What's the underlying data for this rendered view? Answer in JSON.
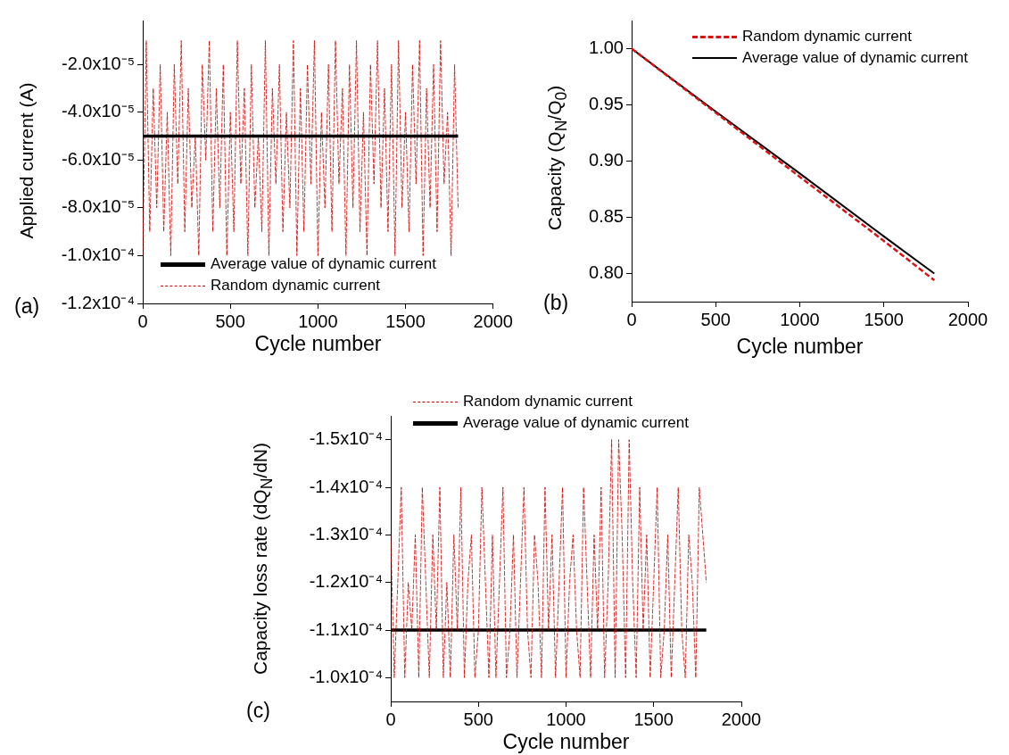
{
  "chart_data": [
    {
      "type": "line",
      "xlabel": "Cycle number",
      "ylabel": "Applied current (A)",
      "annotations": [
        "(a)"
      ],
      "legend": "bottom left",
      "marker": "none",
      "xlim": [
        0,
        2000
      ],
      "xticks": [
        0,
        500,
        1000,
        1500,
        2000
      ],
      "ylim": [
        -0.00012,
        -1.6e-06
      ],
      "yticks": [
        {
          "value": -0.00012,
          "label": "-1.2x10⁻⁴"
        },
        {
          "value": -0.0001,
          "label": "-1.0x10⁻⁴"
        },
        {
          "value": -8e-05,
          "label": "-8.0x10⁻⁵"
        },
        {
          "value": -6e-05,
          "label": "-6.0x10⁻⁵"
        },
        {
          "value": -4e-05,
          "label": "-4.0x10⁻⁵"
        },
        {
          "value": -2e-05,
          "label": "-2.0x10⁻⁵"
        }
      ],
      "series": [
        {
          "name": "Average value of dynamic current",
          "color": "#000000",
          "line_style": "solid",
          "x": [
            0,
            1800
          ],
          "values": [
            -5e-05,
            -5e-05
          ]
        },
        {
          "name": "Random dynamic current",
          "color": "#cc0000",
          "line_style": "dashed",
          "x": [
            0,
            20,
            40,
            60,
            80,
            100,
            120,
            140,
            160,
            180,
            200,
            220,
            240,
            260,
            280,
            300,
            320,
            340,
            360,
            380,
            400,
            420,
            440,
            460,
            480,
            500,
            520,
            540,
            560,
            580,
            600,
            620,
            640,
            660,
            680,
            700,
            720,
            740,
            760,
            780,
            800,
            820,
            840,
            860,
            880,
            900,
            920,
            940,
            960,
            980,
            1000,
            1020,
            1040,
            1060,
            1080,
            1100,
            1120,
            1140,
            1160,
            1180,
            1200,
            1220,
            1240,
            1260,
            1280,
            1300,
            1320,
            1340,
            1360,
            1380,
            1400,
            1420,
            1440,
            1460,
            1480,
            1500,
            1520,
            1540,
            1560,
            1580,
            1600,
            1620,
            1640,
            1660,
            1680,
            1700,
            1720,
            1740,
            1760,
            1780,
            1800
          ],
          "values": [
            -0.0001,
            -1e-05,
            -9e-05,
            -3e-05,
            -8e-05,
            -2e-05,
            -9e-05,
            -4e-05,
            -0.0001,
            -2e-05,
            -7e-05,
            -1e-05,
            -9e-05,
            -3e-05,
            -8e-05,
            -5e-05,
            -0.0001,
            -2e-05,
            -6e-05,
            -1e-05,
            -9e-05,
            -3e-05,
            -8e-05,
            -2e-05,
            -0.0001,
            -4e-05,
            -9e-05,
            -1e-05,
            -7e-05,
            -3e-05,
            -0.0001,
            -2e-05,
            -8e-05,
            -5e-05,
            -9e-05,
            -1e-05,
            -0.0001,
            -3e-05,
            -7e-05,
            -2e-05,
            -9e-05,
            -4e-05,
            -8e-05,
            -1e-05,
            -0.0001,
            -3e-05,
            -9e-05,
            -2e-05,
            -7e-05,
            -1e-05,
            -0.0001,
            -4e-05,
            -8e-05,
            -2e-05,
            -9e-05,
            -1e-05,
            -7e-05,
            -3e-05,
            -0.0001,
            -2e-05,
            -8e-05,
            -1e-05,
            -9e-05,
            -4e-05,
            -0.0001,
            -2e-05,
            -7e-05,
            -1e-05,
            -8e-05,
            -3e-05,
            -9e-05,
            -2e-05,
            -0.0001,
            -1e-05,
            -8e-05,
            -4e-05,
            -9e-05,
            -2e-05,
            -7e-05,
            -1e-05,
            -0.0001,
            -3e-05,
            -8e-05,
            -2e-05,
            -9e-05,
            -1e-05,
            -7e-05,
            -4e-05,
            -0.0001,
            -2e-05,
            -8e-05
          ]
        }
      ]
    },
    {
      "type": "line",
      "xlabel": "Cycle number",
      "ylabel": "Capacity (Q$_{N}$/Q$_{0}$)",
      "annotations": [
        "(b)"
      ],
      "legend": "top right",
      "marker": "none",
      "xlim": [
        0,
        2000
      ],
      "xticks": [
        0,
        500,
        1000,
        1500,
        2000
      ],
      "ylim": [
        0.775,
        1.025
      ],
      "yticks": [
        {
          "value": 0.8,
          "label": "0.80"
        },
        {
          "value": 0.85,
          "label": "0.85"
        },
        {
          "value": 0.9,
          "label": "0.90"
        },
        {
          "value": 0.95,
          "label": "0.95"
        },
        {
          "value": 1,
          "label": "1.00"
        }
      ],
      "series": [
        {
          "name": "Random dynamic current",
          "color": "#dd1111",
          "line_style": "dashed",
          "x": [
            0,
            500,
            1000,
            1500,
            1800
          ],
          "values": [
            1,
            0.943,
            0.886,
            0.829,
            0.794
          ]
        },
        {
          "name": "Average value of dynamic current",
          "color": "#000000",
          "line_style": "solid",
          "x": [
            0,
            500,
            1000,
            1500,
            1800
          ],
          "values": [
            1,
            0.944,
            0.889,
            0.833,
            0.8
          ]
        }
      ]
    },
    {
      "type": "line",
      "xlabel": "Cycle number",
      "ylabel": "Capacity loss rate (dQ$_{N}$/dN)",
      "annotations": [
        "(c)"
      ],
      "legend": "top",
      "marker": "none",
      "xlim": [
        0,
        2000
      ],
      "xticks": [
        0,
        500,
        1000,
        1500,
        2000
      ],
      "ylim": [
        -9.5e-05,
        -0.000155
      ],
      "yticks": [
        {
          "value": -0.0001,
          "label": "-1.0x10⁻⁴"
        },
        {
          "value": -0.00011,
          "label": "-1.1x10⁻⁴"
        },
        {
          "value": -0.00012,
          "label": "-1.2x10⁻⁴"
        },
        {
          "value": -0.00013,
          "label": "-1.3x10⁻⁴"
        },
        {
          "value": -0.00014,
          "label": "-1.4x10⁻⁴"
        },
        {
          "value": -0.00015,
          "label": "-1.5x10⁻⁴"
        }
      ],
      "series": [
        {
          "name": "Random dynamic current",
          "color": "#cc0000",
          "line_style": "dashed",
          "x": [
            0,
            20,
            40,
            60,
            80,
            100,
            120,
            140,
            160,
            180,
            200,
            220,
            240,
            260,
            280,
            300,
            320,
            340,
            360,
            380,
            400,
            420,
            440,
            460,
            480,
            500,
            520,
            540,
            560,
            580,
            600,
            620,
            640,
            660,
            680,
            700,
            720,
            740,
            760,
            780,
            800,
            820,
            840,
            860,
            880,
            900,
            920,
            940,
            960,
            980,
            1000,
            1020,
            1040,
            1060,
            1080,
            1100,
            1120,
            1140,
            1160,
            1180,
            1200,
            1220,
            1240,
            1260,
            1280,
            1300,
            1320,
            1340,
            1360,
            1380,
            1400,
            1420,
            1440,
            1460,
            1480,
            1500,
            1520,
            1540,
            1560,
            1580,
            1600,
            1620,
            1640,
            1660,
            1680,
            1700,
            1720,
            1740,
            1760,
            1780,
            1800
          ],
          "values": [
            -0.00013,
            -0.0001,
            -0.00012,
            -0.00014,
            -0.0001,
            -0.00012,
            -0.00011,
            -0.00013,
            -0.0001,
            -0.00014,
            -0.00012,
            -0.0001,
            -0.00013,
            -0.00011,
            -0.00014,
            -0.0001,
            -0.00012,
            -0.0001,
            -0.00013,
            -0.00011,
            -0.00014,
            -0.0001,
            -0.00012,
            -0.00013,
            -0.0001,
            -0.00011,
            -0.00014,
            -0.00012,
            -0.0001,
            -0.00013,
            -0.0001,
            -0.00012,
            -0.00014,
            -0.0001,
            -0.00011,
            -0.00013,
            -0.0001,
            -0.00012,
            -0.00014,
            -0.00011,
            -0.0001,
            -0.00013,
            -0.00012,
            -0.0001,
            -0.00014,
            -0.00011,
            -0.00013,
            -0.0001,
            -0.00012,
            -0.00014,
            -0.0001,
            -0.00012,
            -0.00013,
            -0.00011,
            -0.0001,
            -0.00014,
            -0.00012,
            -0.0001,
            -0.00013,
            -0.00011,
            -0.00014,
            -0.0001,
            -0.00012,
            -0.00015,
            -0.0001,
            -0.00015,
            -0.00013,
            -0.0001,
            -0.00015,
            -0.00012,
            -0.0001,
            -0.00014,
            -0.00011,
            -0.00013,
            -0.0001,
            -0.00012,
            -0.00014,
            -0.0001,
            -0.00011,
            -0.00013,
            -0.0001,
            -0.00012,
            -0.00014,
            -0.00011,
            -0.0001,
            -0.00013,
            -0.00012,
            -0.0001,
            -0.00014,
            -0.00013,
            -0.00012
          ]
        },
        {
          "name": "Average value of dynamic current",
          "color": "#000000",
          "line_style": "solid",
          "x": [
            0,
            1800
          ],
          "values": [
            -0.00011,
            -0.00011
          ]
        }
      ]
    }
  ]
}
